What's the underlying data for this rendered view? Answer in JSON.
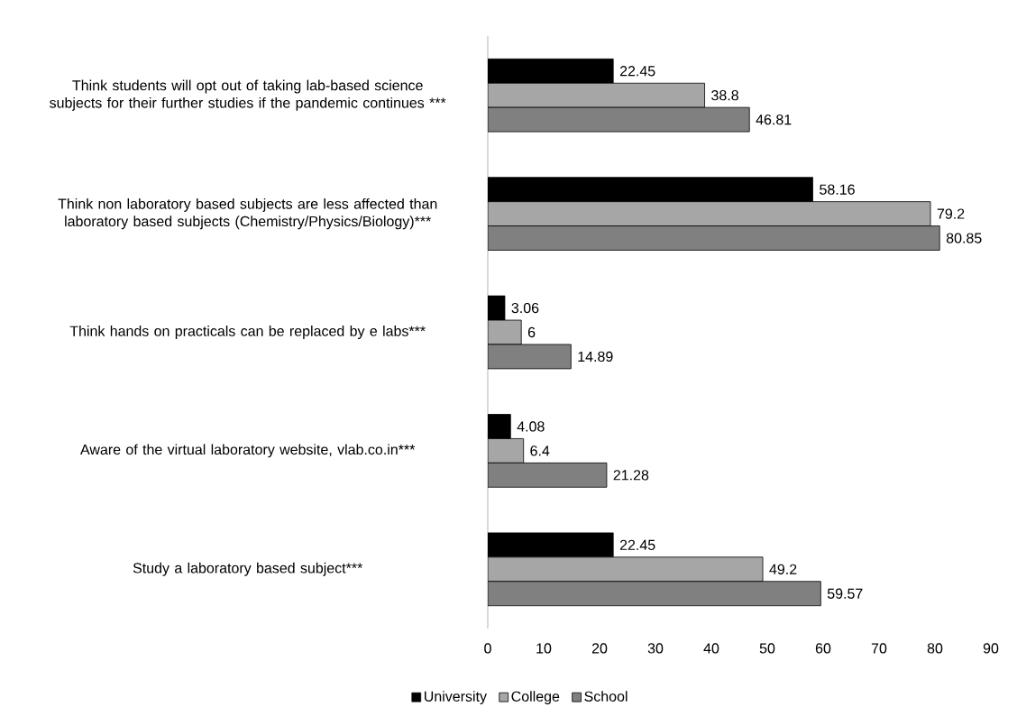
{
  "chart_data": {
    "type": "bar",
    "orientation": "horizontal",
    "categories": [
      "Think students will opt out of taking lab-based science subjects for their further studies if the pandemic continues ***",
      "Think non laboratory based subjects are less affected than laboratory based subjects (Chemistry/Physics/Biology)***",
      "Think hands on practicals can be replaced by e labs***",
      "Aware of the virtual laboratory website, vlab.co.in***",
      "Study a laboratory based subject***"
    ],
    "series": [
      {
        "name": "University",
        "color": "#000000",
        "values": [
          22.45,
          58.16,
          3.06,
          4.08,
          22.45
        ]
      },
      {
        "name": "College",
        "color": "#a6a6a6",
        "values": [
          38.8,
          79.2,
          6,
          6.4,
          49.2
        ]
      },
      {
        "name": "School",
        "color": "#808080",
        "values": [
          46.81,
          80.85,
          14.89,
          21.28,
          59.57
        ]
      }
    ],
    "xlim": [
      0,
      90
    ],
    "xticks": [
      0,
      10,
      20,
      30,
      40,
      50,
      60,
      70,
      80,
      90
    ],
    "data_labels": true,
    "legend": "bottom"
  }
}
